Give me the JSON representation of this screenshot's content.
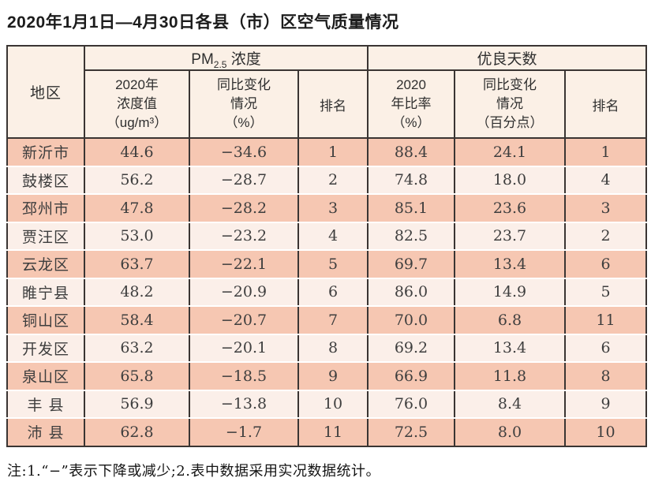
{
  "title": "2020年1月1日—4月30日各县（市）区空气质量情况",
  "colors": {
    "row_salmon": "#f6c7b2",
    "row_light": "#fbefe9",
    "header_bg": "#fbf0e6",
    "border_dark": "#3a3533"
  },
  "table": {
    "header": {
      "region": "地区",
      "pm_group": {
        "prefix": "PM",
        "sub": "2.5",
        "suffix": " 浓度"
      },
      "days_group": "优良天数",
      "pm_value_lines": [
        "2020年",
        "浓度值",
        "（ug/m³）"
      ],
      "pm_change_lines": [
        "同比变化",
        "情况",
        "（%）"
      ],
      "pm_rank": "排名",
      "days_rate_lines": [
        "2020",
        "年比率",
        "（%）"
      ],
      "days_change_lines": [
        "同比变化",
        "情况",
        "（百分点）"
      ],
      "days_rank": "排名"
    },
    "rows": [
      {
        "region": "新沂市",
        "pm_value": "44.6",
        "pm_change": "−34.6",
        "pm_rank": "1",
        "days_rate": "88.4",
        "days_change": "24.1",
        "days_rank": "1"
      },
      {
        "region": "鼓楼区",
        "pm_value": "56.2",
        "pm_change": "−28.7",
        "pm_rank": "2",
        "days_rate": "74.8",
        "days_change": "18.0",
        "days_rank": "4"
      },
      {
        "region": "邳州市",
        "pm_value": "47.8",
        "pm_change": "−28.2",
        "pm_rank": "3",
        "days_rate": "85.1",
        "days_change": "23.6",
        "days_rank": "3"
      },
      {
        "region": "贾汪区",
        "pm_value": "53.0",
        "pm_change": "−23.2",
        "pm_rank": "4",
        "days_rate": "82.5",
        "days_change": "23.7",
        "days_rank": "2"
      },
      {
        "region": "云龙区",
        "pm_value": "63.7",
        "pm_change": "−22.1",
        "pm_rank": "5",
        "days_rate": "69.7",
        "days_change": "13.4",
        "days_rank": "6"
      },
      {
        "region": "睢宁县",
        "pm_value": "48.2",
        "pm_change": "−20.9",
        "pm_rank": "6",
        "days_rate": "86.0",
        "days_change": "14.9",
        "days_rank": "5"
      },
      {
        "region": "铜山区",
        "pm_value": "58.4",
        "pm_change": "−20.7",
        "pm_rank": "7",
        "days_rate": "70.0",
        "days_change": "6.8",
        "days_rank": "11"
      },
      {
        "region": "开发区",
        "pm_value": "63.2",
        "pm_change": "−20.1",
        "pm_rank": "8",
        "days_rate": "69.2",
        "days_change": "13.4",
        "days_rank": "6"
      },
      {
        "region": "泉山区",
        "pm_value": "65.8",
        "pm_change": "−18.5",
        "pm_rank": "9",
        "days_rate": "66.9",
        "days_change": "11.8",
        "days_rank": "8"
      },
      {
        "region": "丰 县",
        "pm_value": "56.9",
        "pm_change": "−13.8",
        "pm_rank": "10",
        "days_rate": "76.0",
        "days_change": "8.4",
        "days_rank": "9"
      },
      {
        "region": "沛 县",
        "pm_value": "62.8",
        "pm_change": "−1.7",
        "pm_rank": "11",
        "days_rate": "72.5",
        "days_change": "8.0",
        "days_rank": "10"
      }
    ]
  },
  "footnote": "注:1.“−”表示下降或减少;2.表中数据采用实况数据统计。"
}
